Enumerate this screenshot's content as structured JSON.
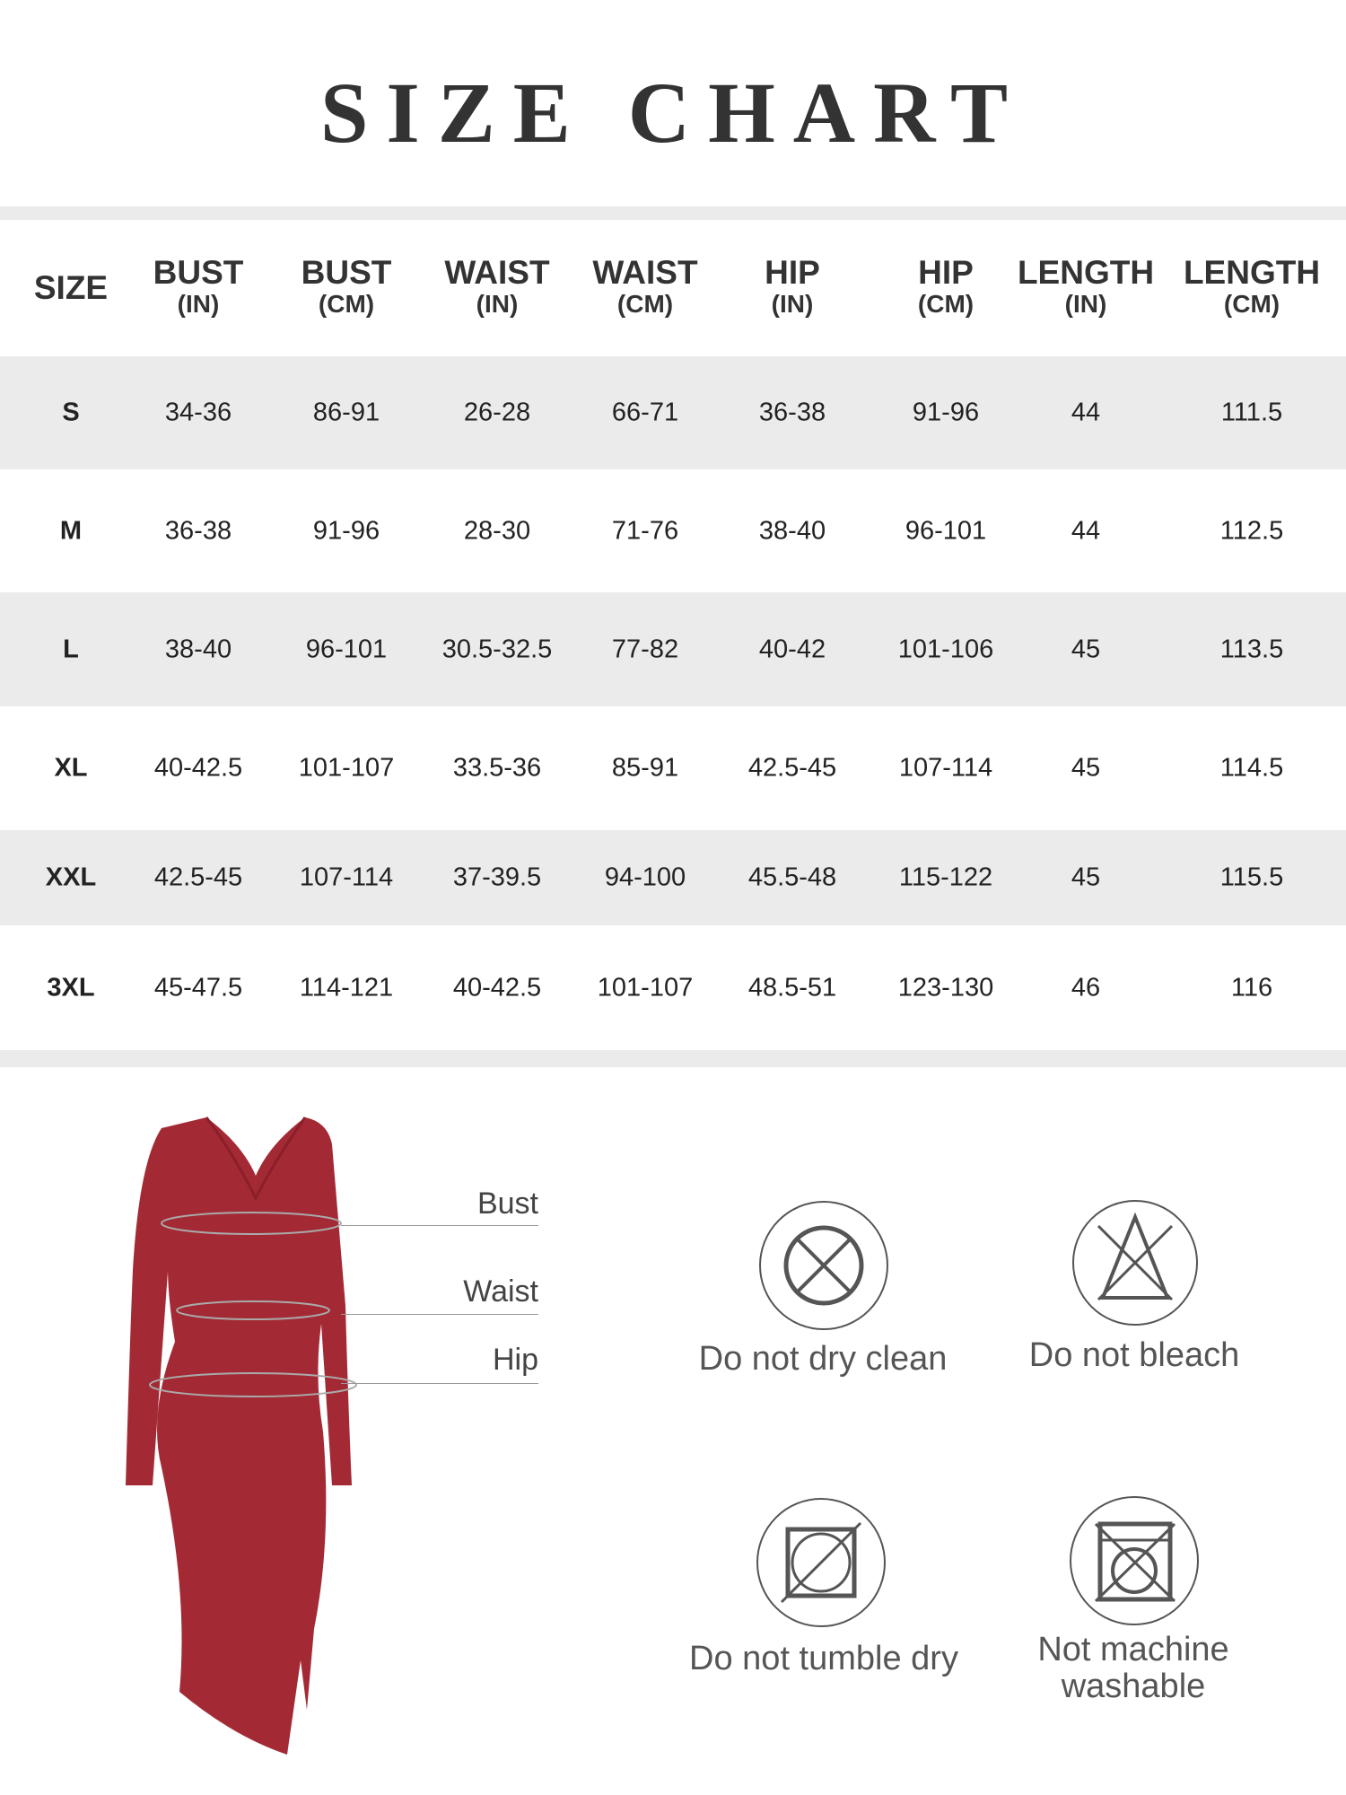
{
  "title": "SIZE CHART",
  "table": {
    "headers": [
      {
        "main": "SIZE",
        "sub": ""
      },
      {
        "main": "BUST",
        "sub": "(IN)"
      },
      {
        "main": "BUST",
        "sub": "(CM)"
      },
      {
        "main": "WAIST",
        "sub": "(IN)"
      },
      {
        "main": "WAIST",
        "sub": "(CM)"
      },
      {
        "main": "HIP",
        "sub": "(IN)"
      },
      {
        "main": "HIP",
        "sub": "(CM)"
      },
      {
        "main": "LENGTH",
        "sub": "(IN)"
      },
      {
        "main": "LENGTH",
        "sub": "(CM)"
      }
    ],
    "rows": [
      [
        "S",
        "34-36",
        "86-91",
        "26-28",
        "66-71",
        "36-38",
        "91-96",
        "44",
        "111.5"
      ],
      [
        "M",
        "36-38",
        "91-96",
        "28-30",
        "71-76",
        "38-40",
        "96-101",
        "44",
        "112.5"
      ],
      [
        "L",
        "38-40",
        "96-101",
        "30.5-32.5",
        "77-82",
        "40-42",
        "101-106",
        "45",
        "113.5"
      ],
      [
        "XL",
        "40-42.5",
        "101-107",
        "33.5-36",
        "85-91",
        "42.5-45",
        "107-114",
        "45",
        "114.5"
      ],
      [
        "XXL",
        "42.5-45",
        "107-114",
        "37-39.5",
        "94-100",
        "45.5-48",
        "115-122",
        "45",
        "115.5"
      ],
      [
        "3XL",
        "45-47.5",
        "114-121",
        "40-42.5",
        "101-107",
        "48.5-51",
        "123-130",
        "46",
        "116"
      ]
    ]
  },
  "measurements": {
    "bust": "Bust",
    "waist": "Waist",
    "hip": "Hip"
  },
  "care": [
    {
      "icon": "no-dry-clean-icon",
      "label": "Do not dry clean"
    },
    {
      "icon": "no-bleach-icon",
      "label": "Do not bleach"
    },
    {
      "icon": "no-tumble-dry-icon",
      "label": "Do not tumble dry"
    },
    {
      "icon": "no-machine-wash-icon",
      "label_line1": "Not machine",
      "label_line2": "washable"
    }
  ],
  "colors": {
    "dress": "#a32a35",
    "row_stripe": "#ebebeb",
    "text": "#333333",
    "icon": "#555555"
  }
}
